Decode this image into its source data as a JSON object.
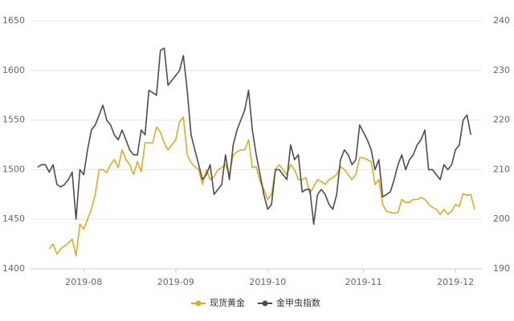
{
  "chart_data": {
    "type": "line",
    "categories": [
      null,
      null,
      null,
      null,
      null,
      null,
      null,
      null,
      null,
      null,
      null,
      null,
      "2019-08",
      null,
      null,
      null,
      null,
      null,
      null,
      null,
      null,
      null,
      null,
      null,
      null,
      null,
      null,
      null,
      null,
      null,
      null,
      null,
      null,
      null,
      null,
      null,
      "2019-09",
      null,
      null,
      null,
      null,
      null,
      null,
      null,
      null,
      null,
      null,
      null,
      null,
      null,
      null,
      null,
      null,
      null,
      null,
      null,
      null,
      null,
      null,
      null,
      "2019-10",
      null,
      null,
      null,
      null,
      null,
      null,
      null,
      null,
      null,
      null,
      null,
      null,
      null,
      null,
      null,
      null,
      null,
      null,
      null,
      null,
      null,
      null,
      null,
      null,
      "2019-11",
      null,
      null,
      null,
      null,
      null,
      null,
      null,
      null,
      null,
      null,
      null,
      null,
      null,
      null,
      null,
      null,
      null,
      null,
      null,
      null,
      null,
      null,
      null,
      "2019-12",
      null,
      null,
      null,
      null,
      null
    ],
    "series": [
      {
        "name": "现货黄金",
        "color": "#d9ad2b",
        "values": [
          null,
          null,
          null,
          1420,
          1425,
          1415,
          1420,
          1423,
          1426,
          1430,
          1413,
          1445,
          1440,
          1450,
          1460,
          1475,
          1500,
          1500,
          1497,
          1505,
          1510,
          1502,
          1520,
          1510,
          1505,
          1495,
          1508,
          1498,
          1527,
          1527,
          1527,
          1543,
          1538,
          1527,
          1520,
          1525,
          1530,
          1548,
          1553,
          1515,
          1507,
          1503,
          1500,
          1485,
          1500,
          1490,
          1493,
          1500,
          1502,
          1505,
          1495,
          1515,
          1518,
          1520,
          1520,
          1530,
          1502,
          1503,
          1488,
          1480,
          1470,
          1475,
          1500,
          1505,
          1500,
          1495,
          1505,
          1500,
          1490,
          1490,
          1492,
          1476,
          1483,
          1490,
          1488,
          1485,
          1490,
          1492,
          1495,
          1503,
          1500,
          1495,
          1490,
          1495,
          1512,
          1512,
          1510,
          1508,
          1485,
          1490,
          1465,
          1458,
          1457,
          1456,
          1457,
          1470,
          1467,
          1467,
          1470,
          1470,
          1472,
          1470,
          1465,
          1462,
          1460,
          1455,
          1460,
          1455,
          1458,
          1465,
          1463,
          1476,
          1474,
          1475,
          1460
        ]
      },
      {
        "name": "金甲虫指数",
        "color": "#4d4d4d",
        "axis": "y2",
        "values": [
          210.5,
          211,
          211,
          209.5,
          211,
          207,
          206.5,
          207,
          208,
          209.5,
          200,
          210,
          209,
          214,
          218,
          219,
          221,
          223,
          220,
          219,
          217,
          216,
          218,
          216,
          214,
          213,
          213,
          218,
          217,
          226,
          225.5,
          225,
          234,
          234.5,
          227,
          228,
          229,
          230,
          233,
          226,
          217,
          214,
          211,
          208,
          209,
          211,
          205,
          206,
          207,
          213,
          208,
          215,
          218,
          220,
          222,
          226,
          218,
          213,
          209,
          205,
          202,
          203,
          210,
          210,
          209,
          208,
          215,
          212,
          213,
          205.5,
          206,
          206,
          199,
          205,
          206,
          205,
          203,
          202,
          205,
          212,
          214,
          213,
          211,
          212,
          219,
          217.5,
          216,
          214,
          210,
          212,
          204.5,
          205,
          205.5,
          208,
          211,
          213,
          210,
          212,
          213,
          215,
          216,
          218,
          210,
          210,
          209,
          208,
          211,
          210,
          211,
          214,
          215,
          220,
          221,
          217,
          null
        ]
      }
    ],
    "ylim": [
      1400,
      1650
    ],
    "yticks": [
      1400,
      1450,
      1500,
      1550,
      1600,
      1650
    ],
    "y2lim": [
      190,
      240
    ],
    "y2ticks": [
      190,
      200,
      210,
      220,
      230,
      240
    ],
    "grid": true,
    "legend": "bottom"
  }
}
